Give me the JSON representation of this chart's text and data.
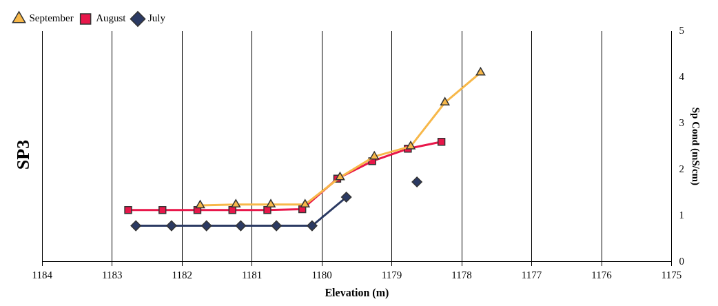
{
  "chart_data": {
    "type": "line",
    "title": "SP3",
    "xlabel": "Elevation (m)",
    "ylabel": "Sp Cond (mS/cm)",
    "xlim": [
      1184,
      1175
    ],
    "xticks": [
      1184,
      1183,
      1182,
      1181,
      1180,
      1179,
      1178,
      1177,
      1176,
      1175
    ],
    "ylim": [
      0,
      5
    ],
    "yticks": [
      0,
      1,
      2,
      3,
      4,
      5
    ],
    "grid": "x",
    "legend": "top left",
    "series": [
      {
        "name": "July",
        "color": "#2b3a63",
        "marker": "diamond",
        "x": [
          1182.66,
          1182.15,
          1181.65,
          1181.16,
          1180.65,
          1180.14,
          1179.65
        ],
        "values": [
          0.78,
          0.78,
          0.78,
          0.78,
          0.78,
          0.78,
          1.4
        ]
      },
      {
        "color": "#2b3a63",
        "marker": "diamond",
        "type": "scatter",
        "x": [
          1178.64
        ],
        "values": [
          1.73
        ]
      },
      {
        "name": "August",
        "color": "#e8174a",
        "marker": "square",
        "x": [
          1182.77,
          1182.28,
          1181.78,
          1181.28,
          1180.78,
          1180.28,
          1179.78,
          1179.28,
          1178.77,
          1178.29
        ],
        "values": [
          1.12,
          1.12,
          1.12,
          1.12,
          1.12,
          1.14,
          1.8,
          2.18,
          2.45,
          2.6
        ]
      },
      {
        "name": "September",
        "color": "#f7b84a",
        "marker": "triangle",
        "x": [
          1181.74,
          1181.23,
          1180.73,
          1180.24,
          1179.74,
          1179.25,
          1178.73,
          1178.24,
          1177.73
        ],
        "values": [
          1.22,
          1.24,
          1.24,
          1.24,
          1.83,
          2.28,
          2.5,
          3.45,
          4.1
        ]
      }
    ]
  }
}
